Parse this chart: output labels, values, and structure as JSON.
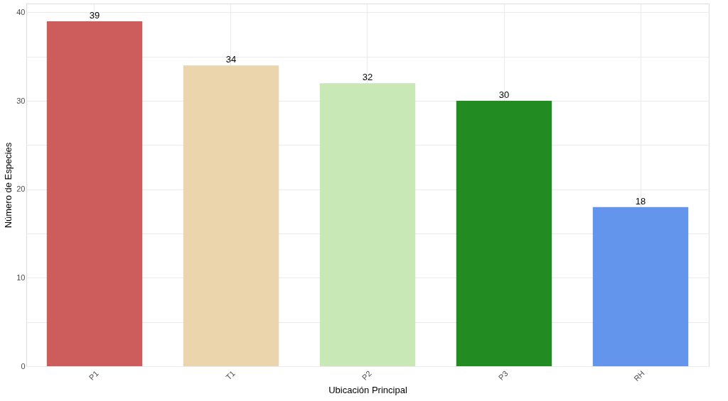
{
  "chart_data": {
    "type": "bar",
    "xlabel": "Ubicación Principal",
    "ylabel": "Número de Especies",
    "categories": [
      "P1",
      "T1",
      "P2",
      "P3",
      "RH"
    ],
    "values": [
      39,
      34,
      32,
      30,
      18
    ],
    "colors": [
      "#cd5c5c",
      "#ead5ac",
      "#c8e8b5",
      "#228b22",
      "#6495ed"
    ],
    "data_labels": true,
    "ylim": [
      0,
      41
    ],
    "yticks": [
      0,
      {
        "value": 5,
        "label": null
      },
      10,
      {
        "value": 15,
        "label": null
      },
      20,
      {
        "value": 25,
        "label": null
      },
      30,
      {
        "value": 35,
        "label": null
      },
      40
    ],
    "grid": true
  }
}
